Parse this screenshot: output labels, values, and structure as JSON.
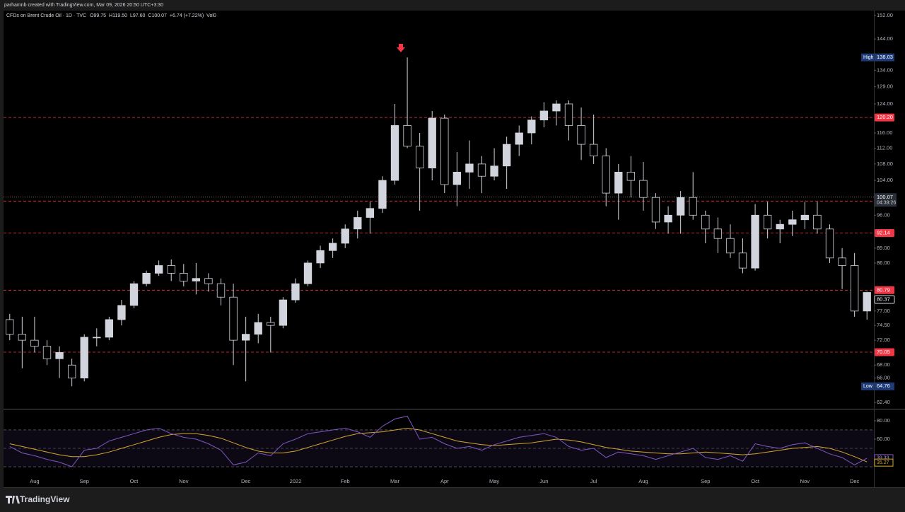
{
  "header": "parhamnb created with TradingView.com, Mar 09, 2026 20:50 UTC+3:30",
  "brand": "TradingView",
  "chart_data": {
    "type": "candlestick",
    "title": "CFDs on Brent Crude Oil · 1D · TVC",
    "ohlc_legend": [
      "O99.75",
      "H119.50",
      "L97.60",
      "C100.07",
      "+6.74 (+7.22%)",
      "Vol0"
    ],
    "categories": [
      null,
      null,
      "Aug",
      null,
      null,
      null,
      "Sep",
      null,
      null,
      null,
      "Oct",
      null,
      null,
      null,
      "Nov",
      null,
      null,
      null,
      null,
      "Dec",
      null,
      null,
      null,
      "2022",
      null,
      null,
      null,
      "Feb",
      null,
      null,
      null,
      "Mar",
      null,
      null,
      null,
      "Apr",
      null,
      null,
      null,
      "May",
      null,
      null,
      null,
      "Jun",
      null,
      null,
      null,
      "Jul",
      null,
      null,
      null,
      "Aug",
      null,
      null,
      null,
      null,
      "Sep",
      null,
      null,
      null,
      "Oct",
      null,
      null,
      null,
      "Nov",
      null,
      null,
      null,
      "Dec",
      null
    ],
    "open": [
      75.5,
      73,
      72,
      71,
      69,
      68,
      66,
      72.5,
      72.5,
      75.5,
      78,
      82,
      84,
      85.5,
      84,
      82.5,
      83,
      82,
      79.5,
      72,
      73,
      75,
      74.5,
      79,
      82,
      86,
      88.5,
      90,
      93,
      95.5,
      97.5,
      104,
      118,
      112.5,
      107,
      120,
      103,
      106,
      108,
      105,
      107.5,
      113,
      116,
      119.5,
      122,
      124,
      118,
      113,
      110,
      101,
      106,
      104,
      100,
      94.5,
      96,
      100,
      96,
      93,
      91,
      88,
      85,
      96,
      93,
      94,
      95,
      96,
      93,
      87,
      85.5,
      77
    ],
    "high": [
      76.5,
      76,
      76,
      72,
      71,
      69,
      73,
      74,
      76,
      79,
      82.5,
      84.5,
      86.5,
      86.7,
      85.8,
      86,
      84,
      83,
      82,
      76,
      76.5,
      76,
      79.5,
      83,
      86.5,
      89.5,
      91,
      94,
      97,
      99,
      105,
      124,
      138.03,
      116,
      122,
      121,
      111,
      114,
      110,
      112,
      115,
      118,
      120.5,
      124.5,
      125,
      125,
      123,
      121,
      112,
      108,
      110,
      108.5,
      101,
      98,
      101.5,
      106,
      97,
      95.5,
      94,
      91,
      98.5,
      99,
      95,
      97,
      99,
      99,
      94,
      89,
      88,
      80.5
    ],
    "low": [
      72,
      67.5,
      70,
      68,
      66,
      64.76,
      65.5,
      71,
      72,
      74.5,
      77.5,
      81.5,
      83.5,
      82.5,
      81.5,
      80,
      80.5,
      78,
      68,
      65.5,
      71.5,
      70,
      74,
      78.5,
      81.5,
      85,
      87,
      89,
      91,
      92,
      96.5,
      103,
      112,
      97,
      104,
      101,
      98,
      102,
      101,
      104,
      102,
      110,
      113,
      117.5,
      118,
      114,
      109,
      108,
      98,
      95,
      100,
      97,
      93,
      92,
      92,
      95,
      90,
      88,
      87,
      84,
      84.5,
      91,
      90,
      91.5,
      93,
      92,
      86,
      81,
      76,
      75.5
    ],
    "close": [
      73,
      72,
      71,
      69,
      70,
      66,
      72.5,
      72.5,
      75.5,
      78,
      82,
      84,
      85.5,
      84,
      82.5,
      83,
      82,
      79.5,
      72,
      73,
      75,
      74.5,
      79,
      82,
      86,
      88.5,
      90,
      93,
      95.5,
      97.5,
      104,
      118,
      112.5,
      107,
      120,
      103,
      106,
      108,
      105,
      107.5,
      113,
      116,
      119.5,
      122,
      124,
      118,
      113,
      110,
      101,
      106,
      104,
      100,
      94.5,
      96,
      100,
      96,
      93,
      91,
      88,
      85,
      96,
      93,
      94,
      95,
      96,
      93,
      87,
      85.5,
      77,
      80.37
    ],
    "up_color": "#d1d4dc",
    "down_color": "#000000",
    "ylim": [
      61.6,
      153.7
    ],
    "log_scale": true,
    "yticks": [
      {
        "value": 62.4,
        "label": "62.40"
      },
      {
        "value": 66,
        "label": "66.00"
      },
      {
        "value": 68,
        "label": "68.00"
      },
      {
        "value": 72,
        "label": "72.00"
      },
      {
        "value": 74.5,
        "label": "74.50"
      },
      {
        "value": 77,
        "label": "77.00"
      },
      {
        "value": 86,
        "label": "86.00"
      },
      {
        "value": 89,
        "label": "89.00"
      },
      {
        "value": 96,
        "label": "96.00"
      },
      {
        "value": 104,
        "label": "104.00"
      },
      {
        "value": 108,
        "label": "108.00"
      },
      {
        "value": 112,
        "label": "112.00"
      },
      {
        "value": 116,
        "label": "116.00"
      },
      {
        "value": 124,
        "label": "124.00"
      },
      {
        "value": 129,
        "label": "129.00"
      },
      {
        "value": 134,
        "label": "134.00"
      },
      {
        "value": 144,
        "label": "144.00"
      },
      {
        "value": 152,
        "label": "152.00"
      }
    ],
    "levels": [
      {
        "value": 120.2,
        "label": "120.20"
      },
      99.17,
      92.14,
      80.79,
      70.05
    ],
    "level_color": "#f23645",
    "last_price": 100.07,
    "countdown": "04:39:26",
    "high_marker": {
      "text": "High",
      "price": 138.03
    },
    "low_marker": {
      "text": "Low",
      "price": 64.76
    },
    "rsi": {
      "ylim": [
        20.8,
        91.5
      ],
      "yticks": [
        {
          "value": 80,
          "label": "80.00"
        },
        {
          "value": 60,
          "label": "60.00"
        }
      ],
      "bands": [
        70,
        50,
        30
      ],
      "color": "#7e57c2",
      "ma_color": "#d4a72c",
      "values": [
        52,
        45,
        42,
        38,
        35,
        30,
        48,
        50,
        58,
        62,
        66,
        70,
        72,
        66,
        62,
        60,
        55,
        48,
        32,
        35,
        45,
        42,
        55,
        60,
        66,
        68,
        70,
        72,
        68,
        62,
        74,
        82,
        85,
        60,
        62,
        55,
        50,
        52,
        48,
        54,
        58,
        62,
        64,
        66,
        62,
        52,
        48,
        50,
        40,
        46,
        44,
        42,
        38,
        42,
        46,
        50,
        40,
        38,
        42,
        36,
        55,
        52,
        50,
        54,
        56,
        50,
        44,
        40,
        32,
        39.33
      ],
      "ma_values": [
        55,
        52,
        49,
        46,
        43,
        41,
        41,
        43,
        46,
        50,
        54,
        58,
        62,
        65,
        66,
        66,
        64,
        61,
        56,
        51,
        47,
        45,
        45,
        47,
        51,
        55,
        59,
        63,
        66,
        67,
        68,
        70,
        72,
        70,
        66,
        62,
        58,
        56,
        54,
        53,
        54,
        55,
        56,
        58,
        60,
        59,
        57,
        54,
        51,
        49,
        47,
        46,
        45,
        44,
        44,
        45,
        46,
        45,
        44,
        43,
        44,
        46,
        48,
        50,
        51,
        52,
        50,
        46,
        41,
        35.27
      ]
    }
  }
}
